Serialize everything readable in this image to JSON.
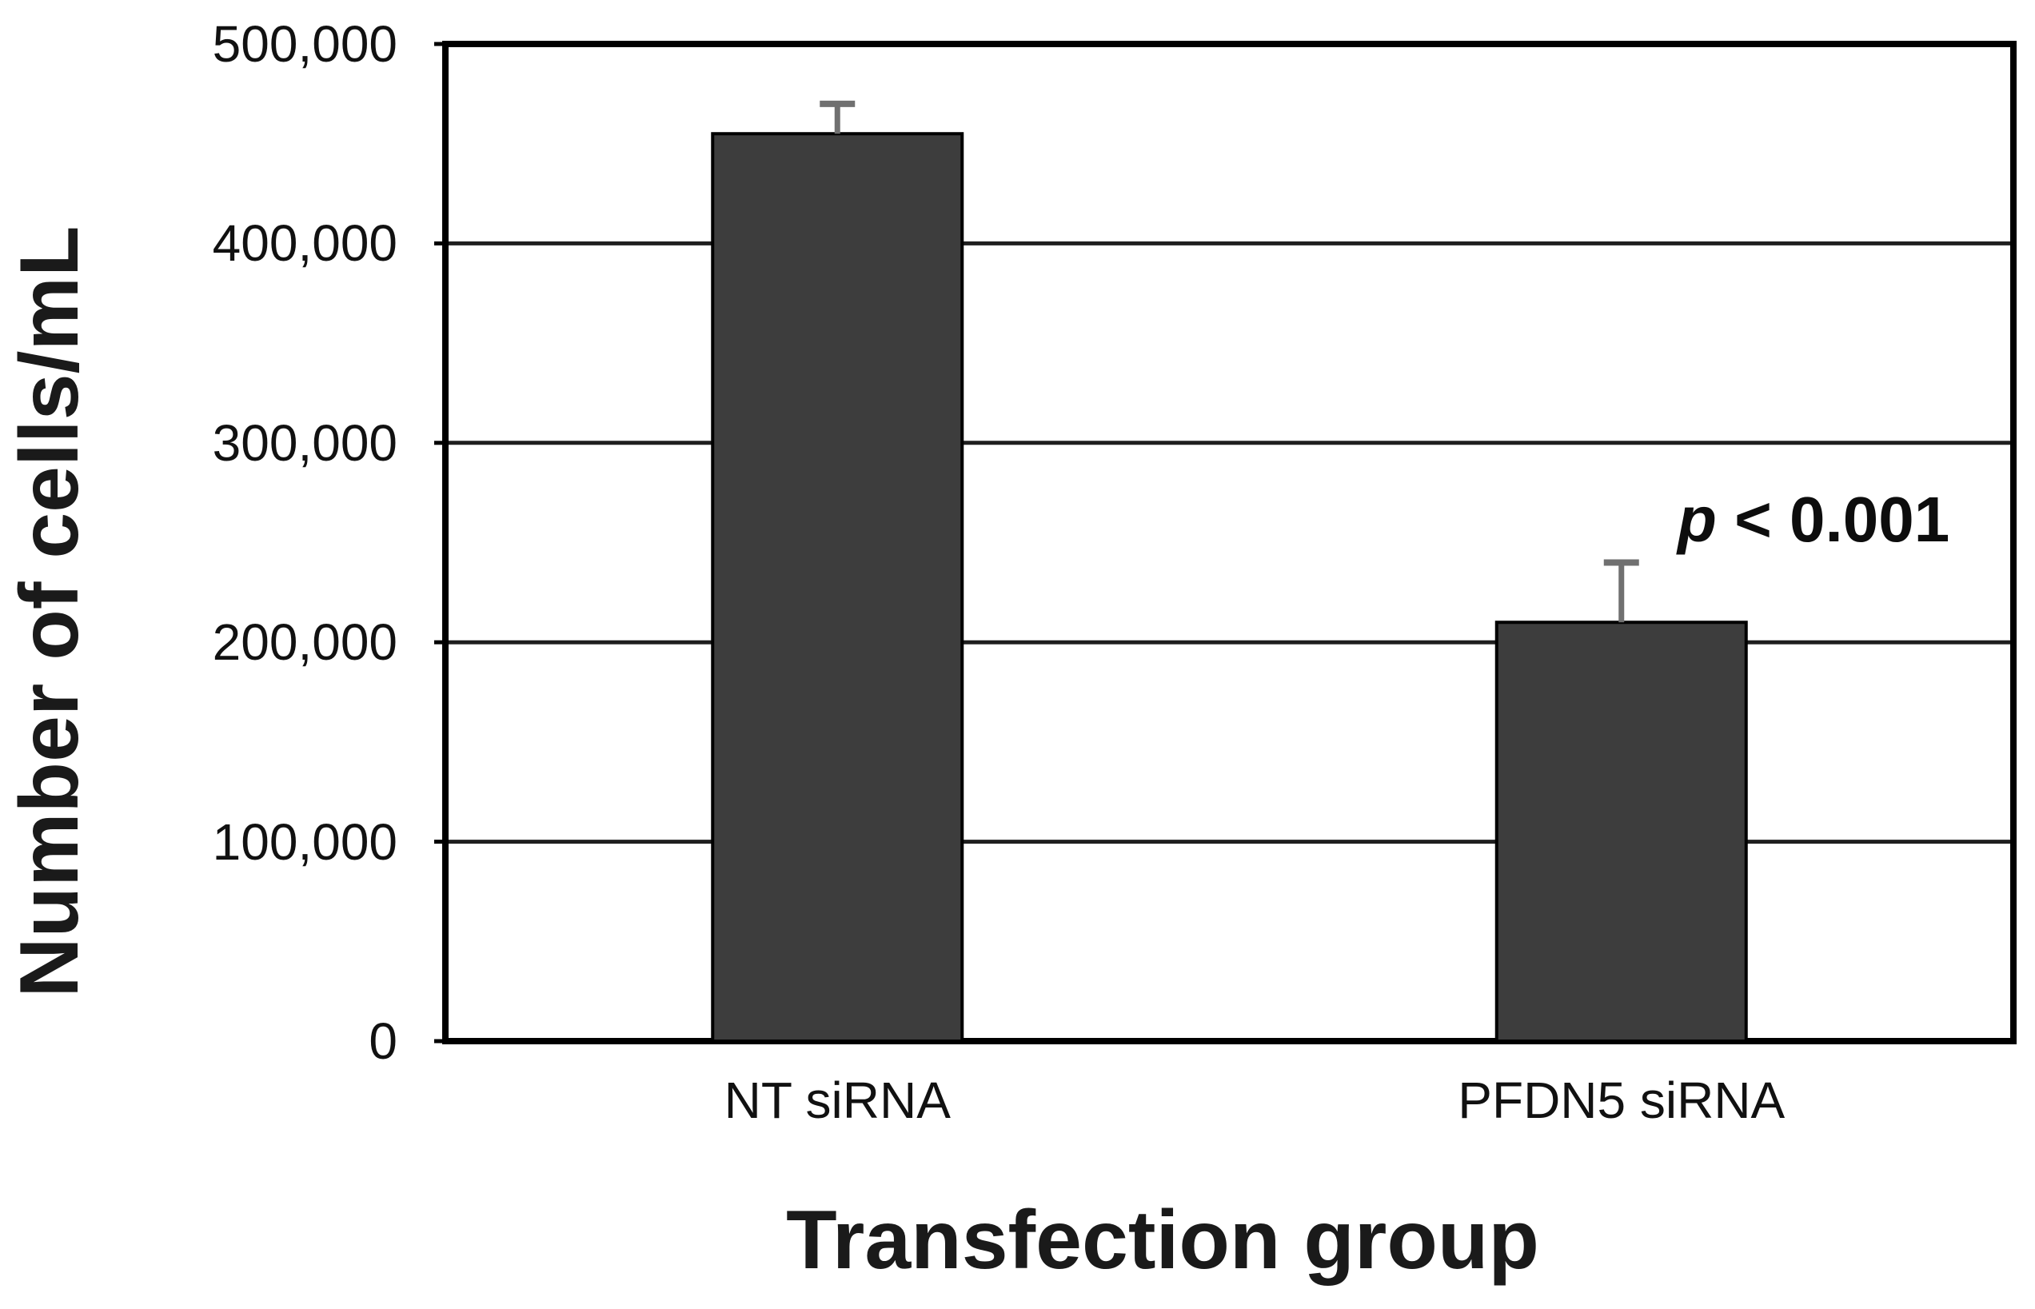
{
  "chart_data": {
    "type": "bar",
    "title": "",
    "xlabel": "Transfection group",
    "ylabel": "Number of cells/mL",
    "categories": [
      "NT siRNA",
      "PFDN5 siRNA"
    ],
    "series": [
      {
        "name": "Number of cells/mL",
        "values": [
          455000,
          210000
        ],
        "errors_plus": [
          15000,
          30000
        ]
      }
    ],
    "ylim": [
      0,
      500000
    ],
    "yticks": [
      {
        "value": 0,
        "label": "0"
      },
      {
        "value": 100000,
        "label": "100,000"
      },
      {
        "value": 200000,
        "label": "200,000"
      },
      {
        "value": 300000,
        "label": "300,000"
      },
      {
        "value": 400000,
        "label": "400,000"
      },
      {
        "value": 500000,
        "label": "500,000"
      }
    ],
    "grid": true,
    "legend": false,
    "annotation": {
      "text": "p < 0.001",
      "p_symbol": "p",
      "comparison": "< 0.001",
      "attached_to": "PFDN5 siRNA"
    },
    "colors": {
      "bar_fill": "#3d3d3d",
      "bar_border": "#000000",
      "error_bar": "#707070",
      "gridline": "#1f1f1f",
      "plot_border": "#000000",
      "text": "#111111"
    }
  }
}
